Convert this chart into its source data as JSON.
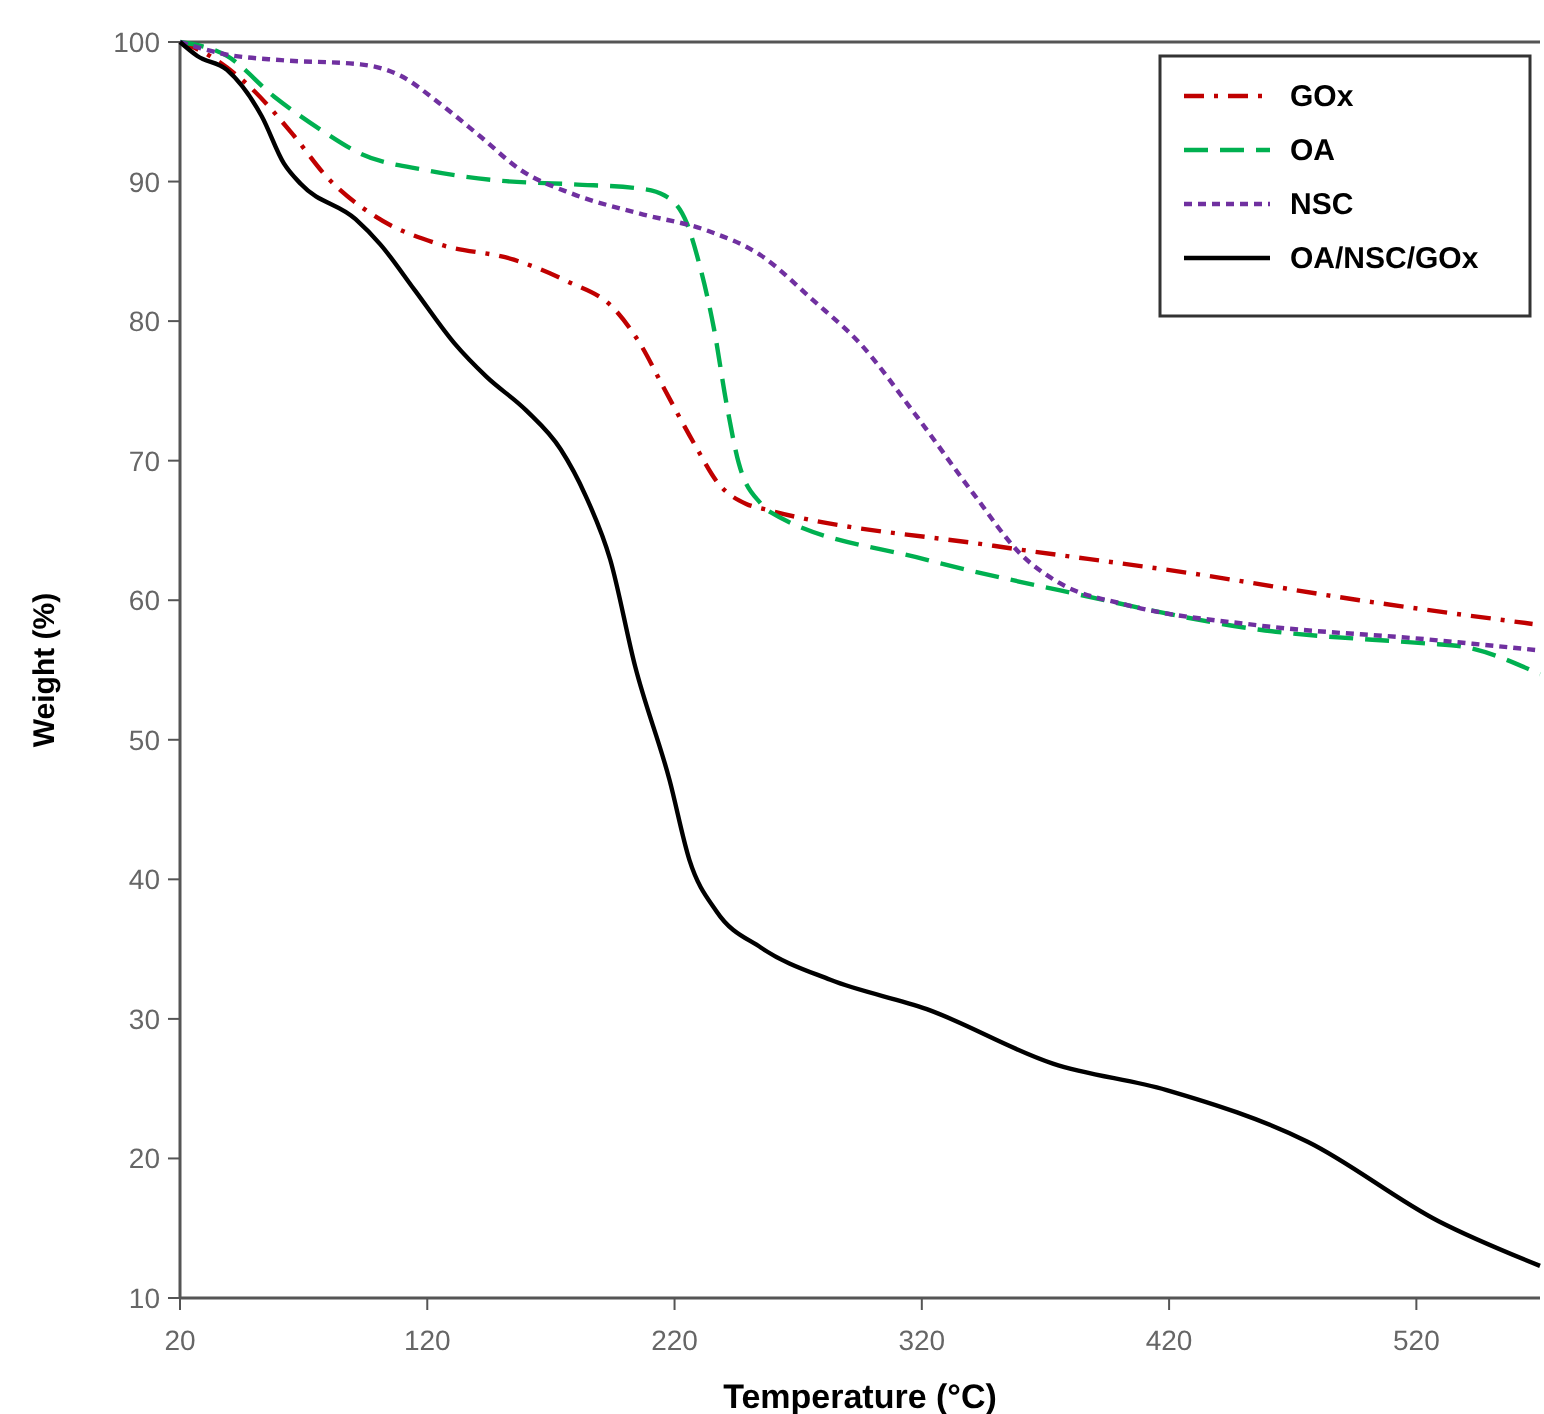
{
  "chart_data": {
    "type": "line",
    "xlabel": "Temperature (°C)",
    "ylabel": "Weight (%)",
    "xlim": [
      20,
      570
    ],
    "xticks": [
      20,
      120,
      220,
      320,
      420,
      520
    ],
    "ylim": [
      10,
      100
    ],
    "yticks": [
      10,
      20,
      30,
      40,
      50,
      60,
      70,
      80,
      90,
      100
    ],
    "grid": false,
    "legend": "top right",
    "marker": "none",
    "series": [
      {
        "name": "GOx",
        "color": "#c00000",
        "line_style": "dashdot",
        "x": [
          20,
          28,
          47,
          66,
          79,
          99,
          125,
          155,
          176,
          196,
          206,
          216,
          228,
          238,
          249,
          257,
          349,
          430,
          497,
          567
        ],
        "values": [
          100,
          99.4,
          97,
          93.3,
          90.4,
          87.5,
          85.5,
          84.4,
          82.9,
          80.8,
          78.4,
          75.1,
          71.2,
          68.3,
          66.9,
          66.5,
          63.9,
          61.9,
          60,
          58.3
        ]
      },
      {
        "name": "OA",
        "color": "#00b050",
        "line_style": "dashed",
        "x": [
          20,
          39,
          58,
          77,
          93,
          120,
          147,
          179,
          206,
          216,
          225,
          230,
          236,
          241,
          246,
          255,
          257,
          322,
          376,
          456,
          524,
          538,
          570
        ],
        "values": [
          100,
          99,
          96.1,
          93.7,
          92,
          90.8,
          90.1,
          89.8,
          89.5,
          89,
          87,
          84.1,
          79.4,
          74.1,
          69.8,
          66.9,
          66.5,
          62.9,
          60.7,
          57.9,
          56.9,
          56.7,
          54.7
        ]
      },
      {
        "name": "NSC",
        "color": "#7030a0",
        "line_style": "dotted",
        "x": [
          20,
          39,
          61,
          93,
          109,
          125,
          141,
          158,
          179,
          206,
          233,
          255,
          276,
          295,
          317,
          341,
          360,
          376,
          402,
          456,
          524,
          570
        ],
        "values": [
          100,
          99.1,
          98.7,
          98.4,
          97.6,
          95.6,
          93.3,
          90.8,
          89.1,
          87.7,
          86.5,
          84.7,
          81.5,
          78.4,
          73.4,
          67.6,
          63.3,
          61.2,
          59.7,
          58.2,
          57.2,
          56.4
        ]
      },
      {
        "name": "OA/NSC/GOx",
        "color": "#000000",
        "line_style": "solid",
        "x": [
          20,
          27,
          39,
          53,
          62,
          69,
          91,
          101,
          115,
          131,
          144,
          160,
          174,
          184,
          194,
          204,
          218,
          226,
          237,
          255,
          283,
          322,
          373,
          419,
          476,
          529,
          570
        ],
        "values": [
          100,
          99,
          98,
          94.7,
          91.3,
          89.8,
          87.3,
          85.5,
          82.2,
          78.4,
          76,
          73.6,
          70.8,
          67.5,
          62.9,
          55.3,
          47.1,
          41.4,
          37.7,
          35.1,
          32.8,
          30.7,
          26.8,
          24.9,
          21.2,
          15.5,
          12.3
        ]
      }
    ]
  }
}
